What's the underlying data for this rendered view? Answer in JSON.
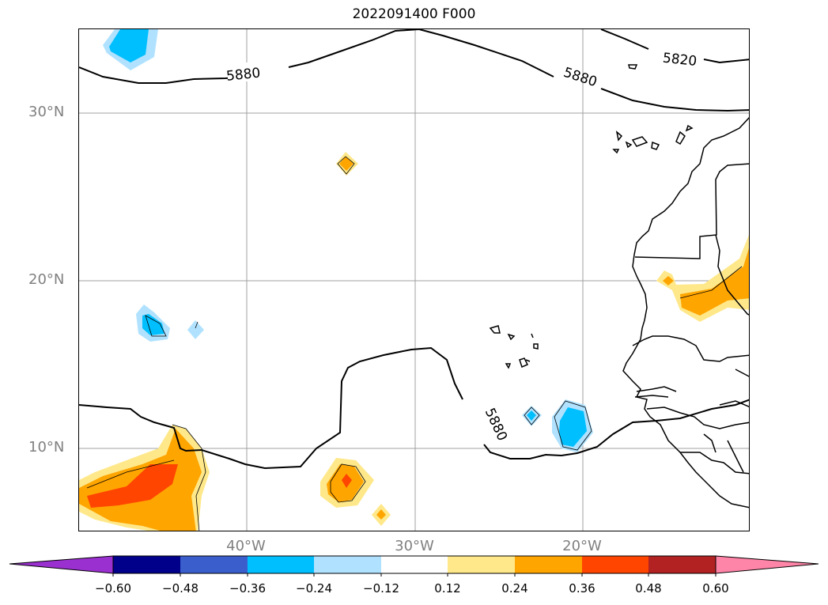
{
  "title": "2022091400 F000",
  "lat_labels": [
    "30°N",
    "20°N",
    "10°N"
  ],
  "lon_labels": [
    "40°W",
    "30°W",
    "20°W"
  ],
  "contour_labels": [
    "5880",
    "5880",
    "5820",
    "5880"
  ],
  "colorbar": {
    "ticks": [
      "−0.60",
      "−0.48",
      "−0.36",
      "−0.24",
      "−0.12",
      "0.12",
      "0.24",
      "0.36",
      "0.48",
      "0.60"
    ],
    "colors": [
      "#9b30d0",
      "#00008b",
      "#3a5fcd",
      "#00bfff",
      "#b0e2ff",
      "#ffffff",
      "#ffe88a",
      "#ffa500",
      "#ff4500",
      "#b22222",
      "#ff85a8"
    ]
  },
  "extent": {
    "lon_min": -50,
    "lon_max": -10,
    "lat_min": 5,
    "lat_max": 35
  }
}
